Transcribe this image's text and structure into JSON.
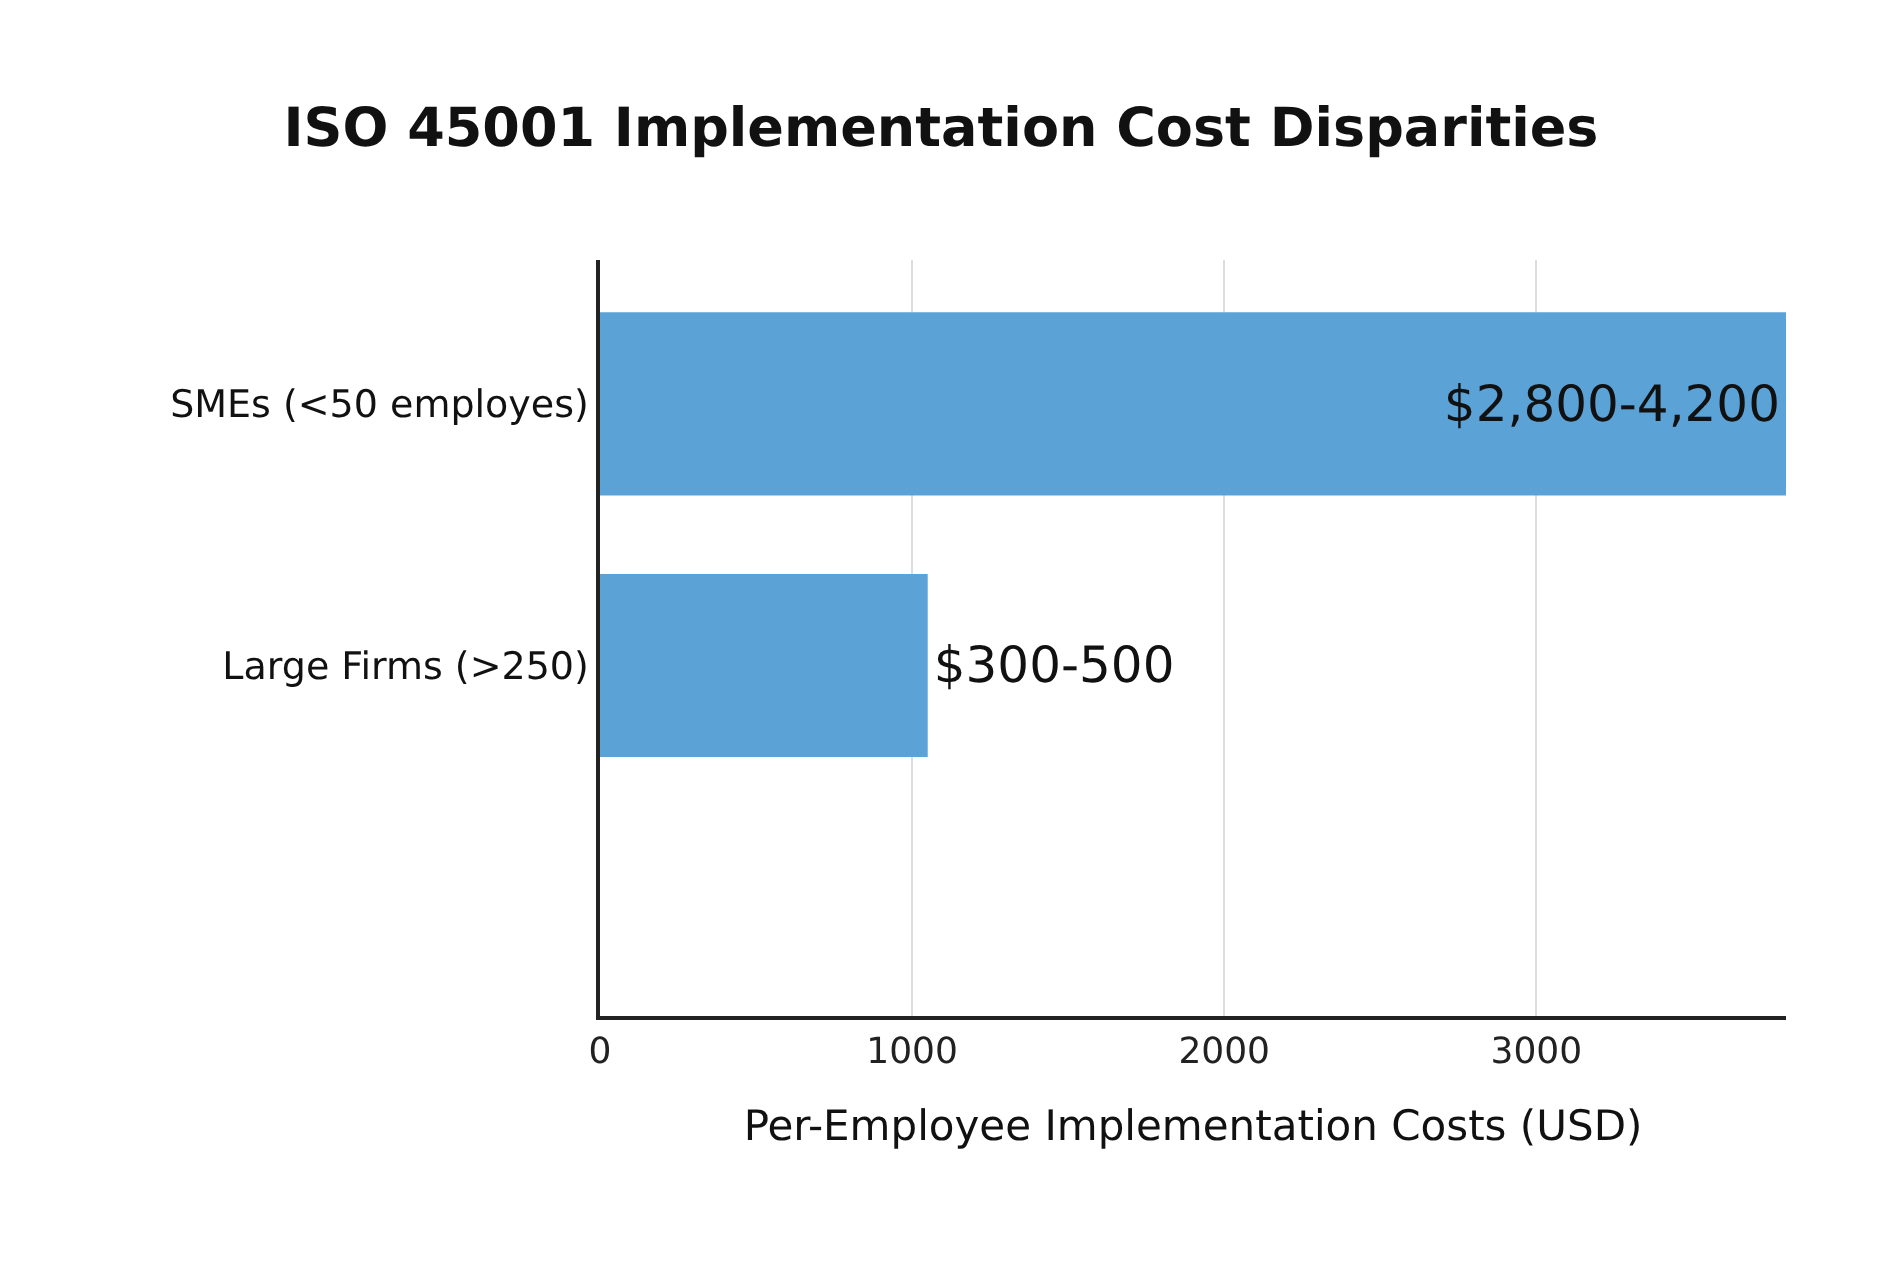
{
  "chart_data": {
    "type": "bar",
    "orientation": "horizontal",
    "title": "ISO 45001 Implementation Cost Disparities",
    "xlabel": "Per-Employee Implementation Costs (USD)",
    "categories": [
      "SMEs (<50 employes)",
      "Large Firms (>250)"
    ],
    "values": [
      3800,
      1050
    ],
    "value_labels": [
      "$2,800-4,200",
      "$300-500"
    ],
    "color": "#5ba3d6",
    "xlim": [
      0,
      3800
    ],
    "xticks": [
      0,
      1000,
      2000,
      3000
    ],
    "grid": "x"
  }
}
